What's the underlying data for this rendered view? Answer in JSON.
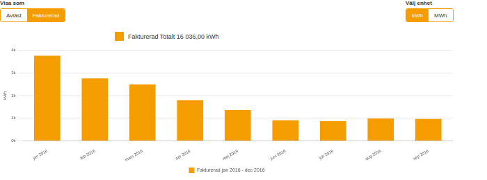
{
  "controls": {
    "view_label": "Visa som",
    "view_options": [
      "Avläst",
      "Fakturerad"
    ],
    "view_selected": "Fakturerad",
    "unit_label": "Välj enhet",
    "unit_options": [
      "kWh",
      "MWh"
    ],
    "unit_selected": "kWh"
  },
  "chart_data": {
    "type": "bar",
    "title": "Fakturerad Totalt 16 036,00 kWh",
    "y_label": "kWh",
    "categories": [
      "jan 2016",
      "feb 2016",
      "mars 2016",
      "apr 2016",
      "maj 2016",
      "juni 2016",
      "juli 2016",
      "aug 2016",
      "sep 2016"
    ],
    "series": [
      {
        "name": "Fakturerad jan 2016 - dec 2016",
        "color": "#f59c00",
        "values": [
          3760,
          2760,
          2490,
          1800,
          1360,
          910,
          870,
          990,
          970
        ]
      }
    ],
    "ylim": [
      0,
      4000
    ],
    "yticks": [
      {
        "value": 0,
        "label": "0k"
      },
      {
        "value": 1000,
        "label": "1k"
      },
      {
        "value": 2000,
        "label": "2k"
      },
      {
        "value": 3000,
        "label": "3k"
      },
      {
        "value": 4000,
        "label": "4k"
      }
    ],
    "grid": true,
    "legend": "bottom"
  }
}
